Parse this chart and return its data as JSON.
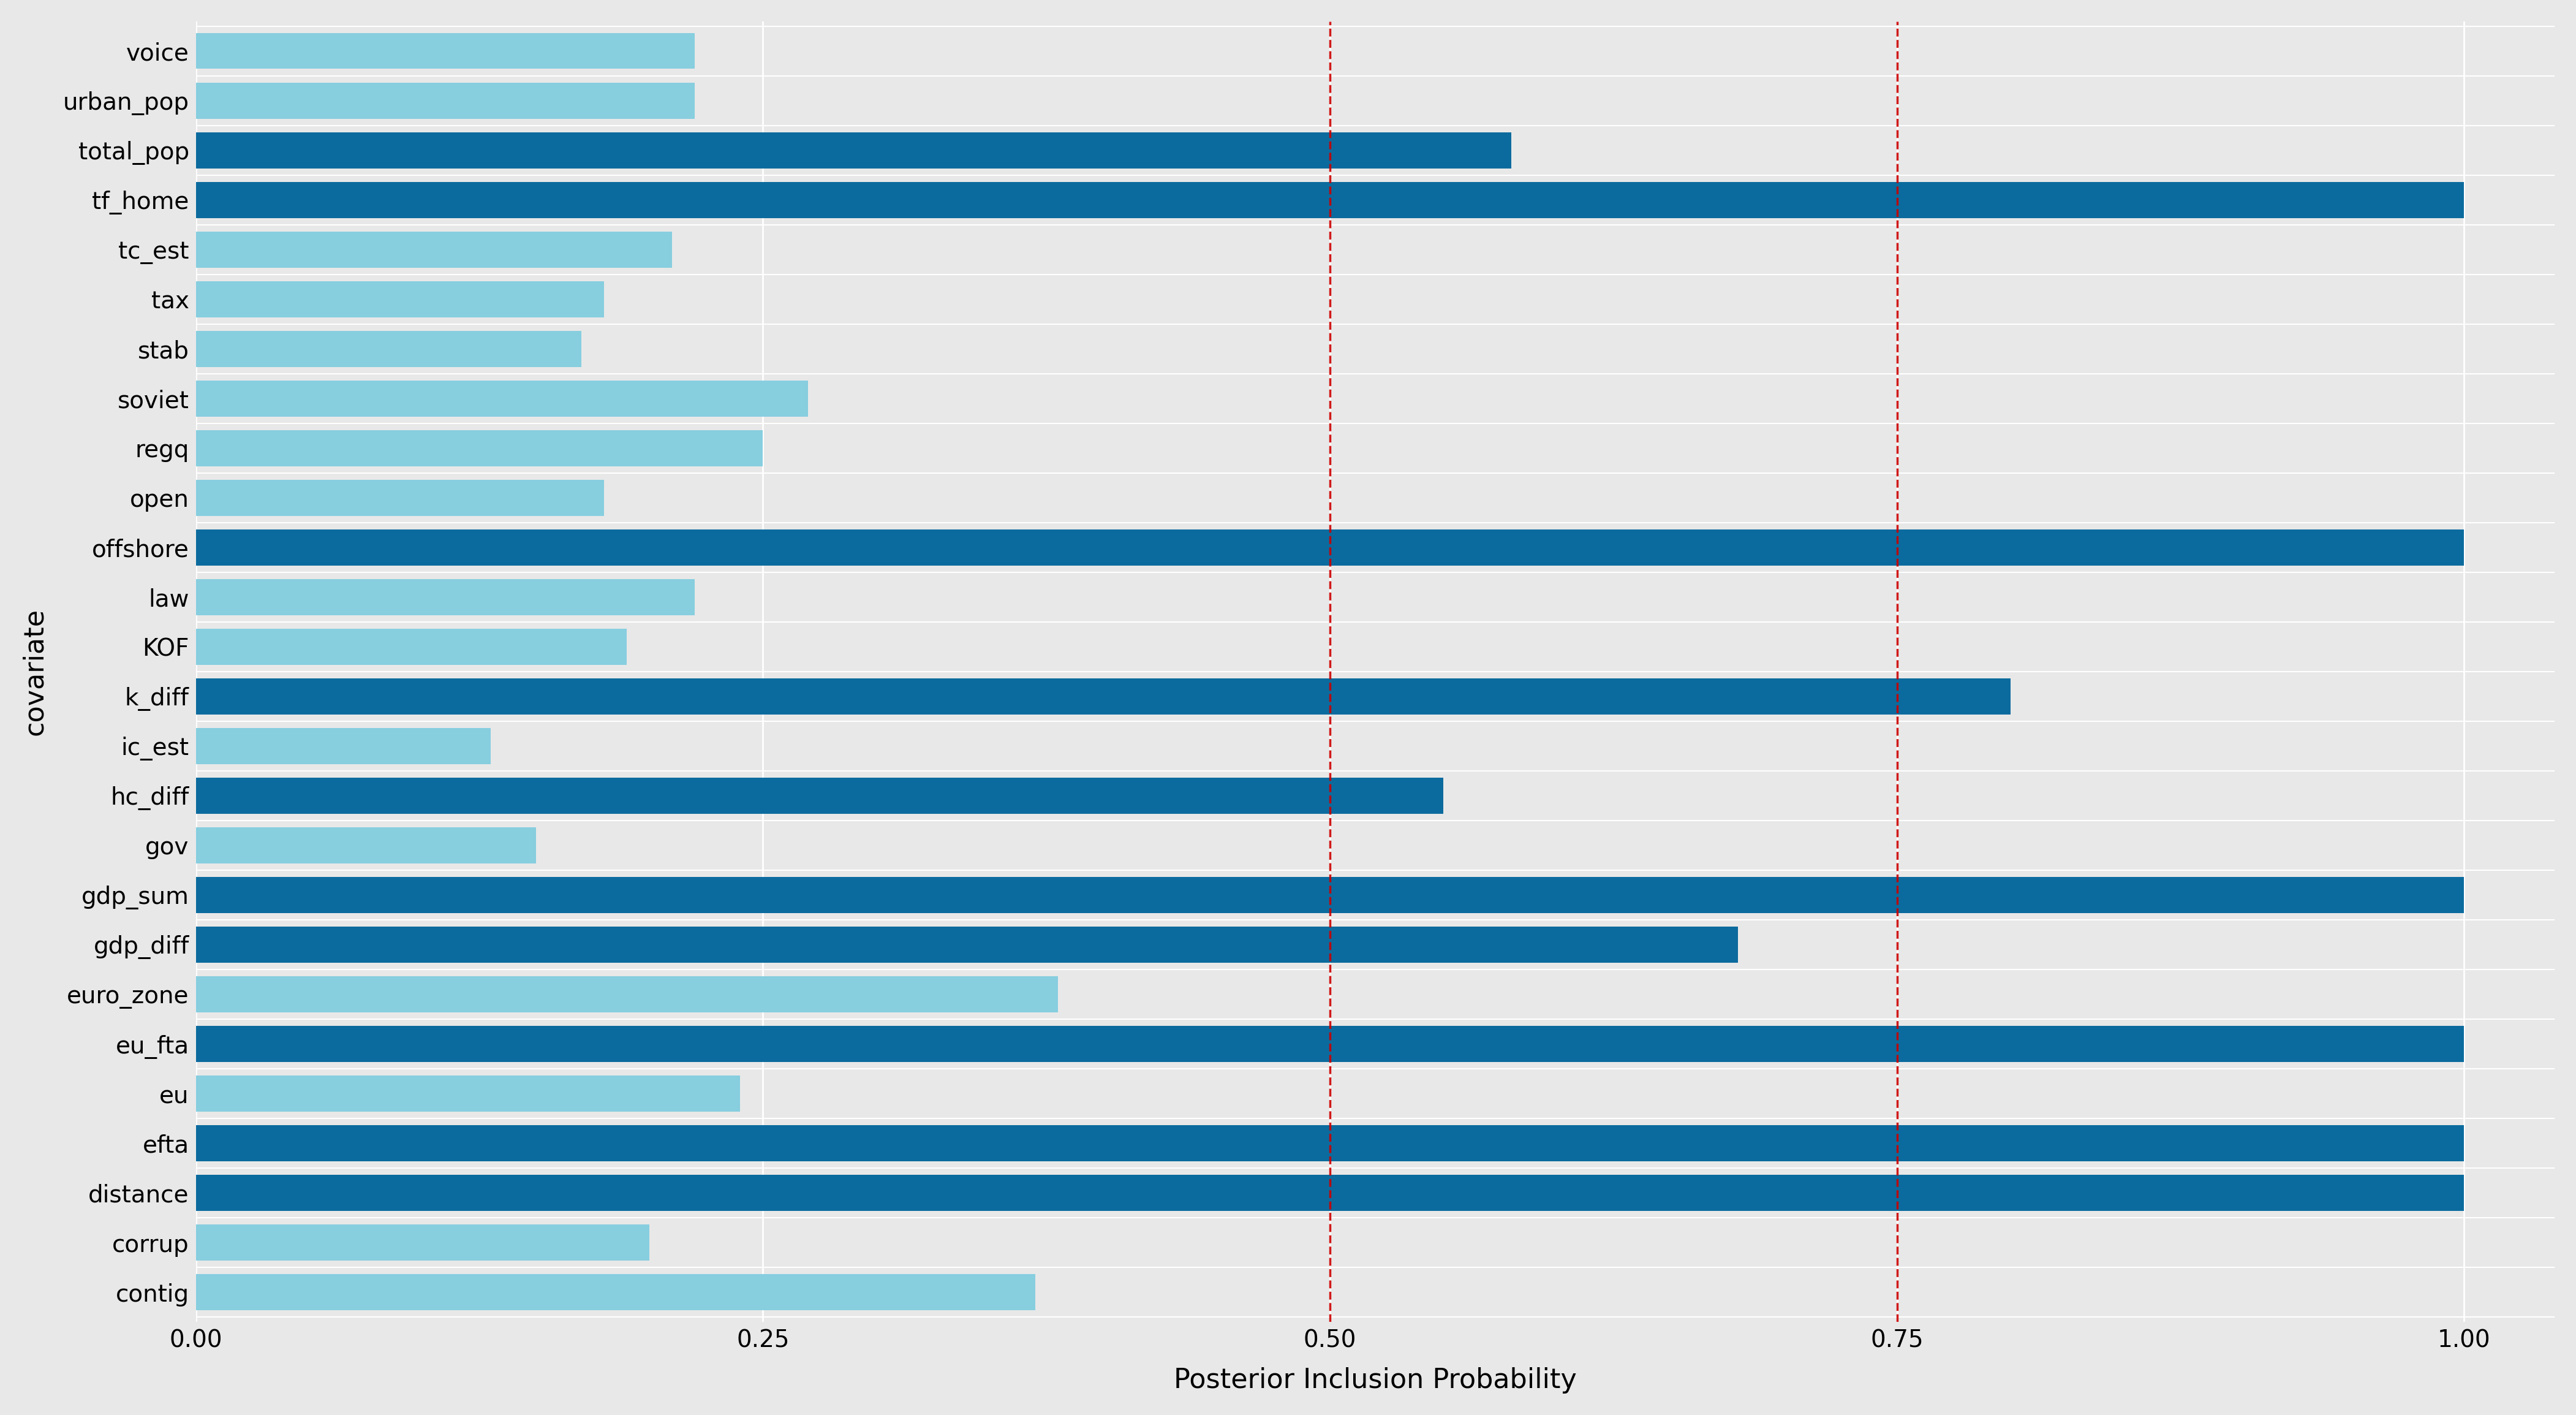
{
  "categories_top_to_bottom": [
    "voice",
    "urban_pop",
    "total_pop",
    "tf_home",
    "tc_est",
    "tax",
    "stab",
    "soviet",
    "regq",
    "open",
    "offshore",
    "law",
    "KOF",
    "k_diff",
    "ic_est",
    "hc_diff",
    "gov",
    "gdp_sum",
    "gdp_diff",
    "euro_zone",
    "eu_fta",
    "eu",
    "efta",
    "distance",
    "corrup",
    "contig"
  ],
  "values_top_to_bottom": [
    0.22,
    0.22,
    0.58,
    1.0,
    0.21,
    0.18,
    0.17,
    0.27,
    0.25,
    0.18,
    1.0,
    0.22,
    0.19,
    0.8,
    0.13,
    0.55,
    0.15,
    1.0,
    0.68,
    0.38,
    1.0,
    0.24,
    1.0,
    1.0,
    0.2,
    0.37
  ],
  "dark_blue": "#0C6B9E",
  "light_blue": "#87CEDF",
  "threshold": 0.5,
  "vline1": 0.5,
  "vline2": 0.75,
  "xlabel": "Posterior Inclusion Probability",
  "ylabel": "covariate",
  "xlim": [
    -0.02,
    1.02
  ],
  "background_color": "#E8E8E8",
  "grid_color": "#FFFFFF",
  "panel_bg": "#E8E8E8",
  "tick_label_fontsize": 28,
  "axis_label_fontsize": 32,
  "bar_height": 0.72
}
